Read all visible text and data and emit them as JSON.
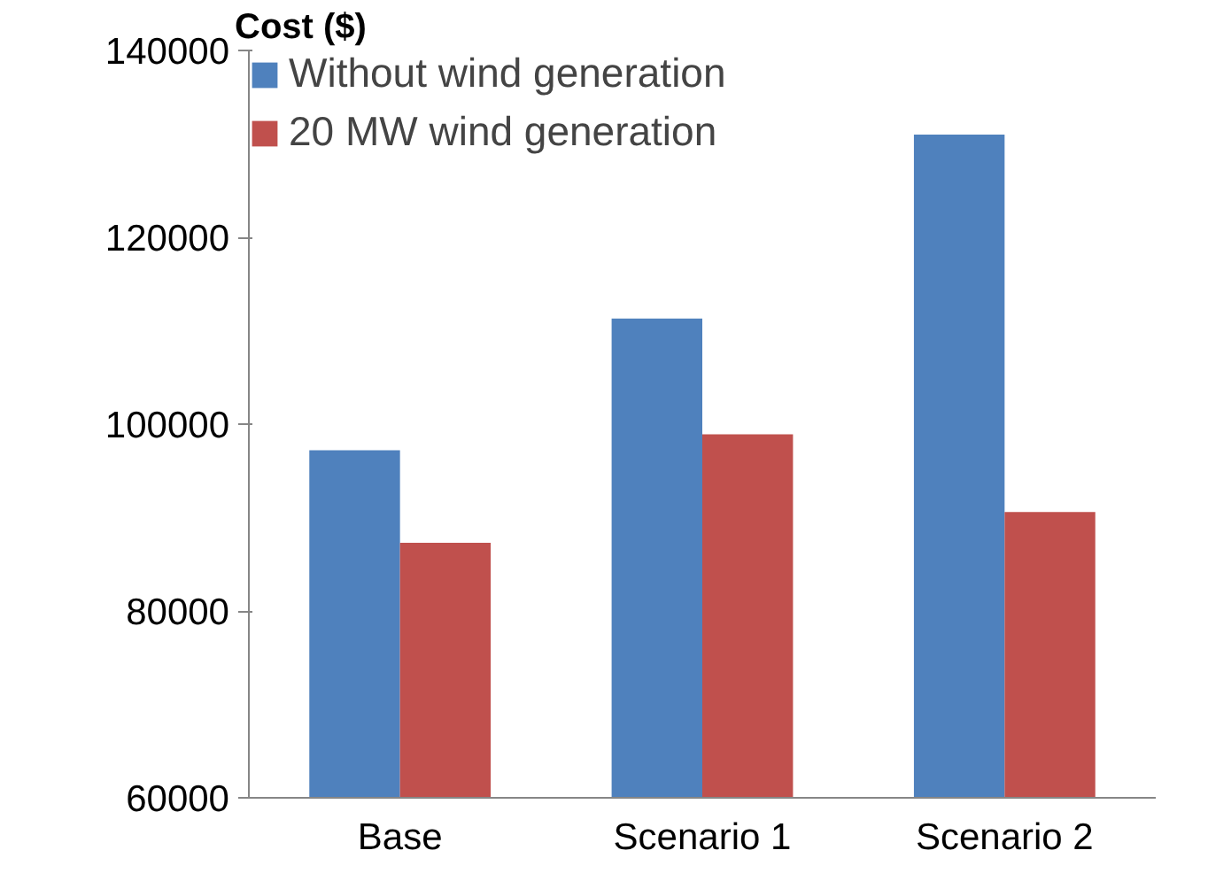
{
  "chart_data": {
    "type": "bar",
    "ylabel": "Cost ($)",
    "categories": [
      "Base",
      "Scenario 1",
      "Scenario 2"
    ],
    "series": [
      {
        "name": "Without wind generation",
        "color": "#4f81bd",
        "values": [
          97200,
          111300,
          131000
        ]
      },
      {
        "name": "20 MW wind generation",
        "color": "#c0504d",
        "values": [
          87300,
          98900,
          90600
        ]
      }
    ],
    "ylim": [
      60000,
      140000
    ],
    "yticks": [
      60000,
      80000,
      100000,
      120000,
      140000
    ],
    "grid": false,
    "legend": "top left"
  }
}
